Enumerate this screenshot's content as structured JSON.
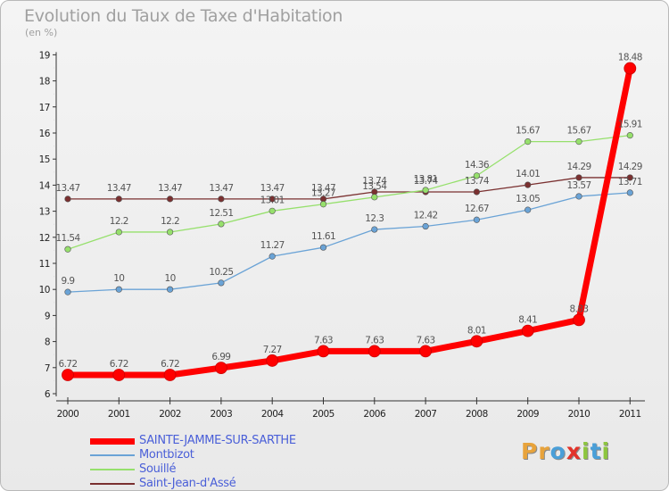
{
  "title": "Evolution du Taux de Taxe d'Habitation",
  "subtitle": "(en %)",
  "logo": {
    "letters": [
      "P",
      "r",
      "o",
      "x",
      "i",
      "t",
      "i"
    ],
    "colors": [
      "#e8a33b",
      "#e8a33b",
      "#4a9fd8",
      "#e2332a",
      "#8dc63f",
      "#4a9fd8",
      "#8dc63f"
    ]
  },
  "chart_data": {
    "type": "line",
    "x": [
      "2000",
      "2001",
      "2002",
      "2003",
      "2004",
      "2005",
      "2006",
      "2007",
      "2008",
      "2009",
      "2010",
      "2011"
    ],
    "ylim": [
      6,
      19
    ],
    "yticks": [
      "6",
      "7",
      "8",
      "9",
      "10",
      "11",
      "12",
      "13",
      "14",
      "15",
      "16",
      "17",
      "18",
      "19"
    ],
    "grid": false,
    "legend_position": "bottom-left",
    "series": [
      {
        "name": "SAINTE-JAMME-SUR-SARTHE",
        "color": "#ff0000",
        "values": [
          6.72,
          6.72,
          6.72,
          6.99,
          7.27,
          7.63,
          7.63,
          7.63,
          8.01,
          8.41,
          8.83,
          18.48
        ],
        "labels": [
          "6.72",
          "6.72",
          "6.72",
          "6.99",
          "7.27",
          "7.63",
          "7.63",
          "7.63",
          "8.01",
          "8.41",
          "8.83",
          "18.48"
        ]
      },
      {
        "name": "Montbizot",
        "color": "#6aa3d6",
        "values": [
          9.9,
          10,
          10,
          10.25,
          11.27,
          11.61,
          12.3,
          12.42,
          12.67,
          13.05,
          13.57,
          13.71
        ],
        "labels": [
          "9.9",
          "10",
          "10",
          "10.25",
          "11.27",
          "11.61",
          "12.3",
          "12.42",
          "12.67",
          "13.05",
          "13.57",
          "13.71"
        ]
      },
      {
        "name": "Souillé",
        "color": "#96e06c",
        "values": [
          11.54,
          12.2,
          12.2,
          12.51,
          13.01,
          13.27,
          13.54,
          13.81,
          14.36,
          15.67,
          15.67,
          15.91
        ],
        "labels": [
          "11.54",
          "12.2",
          "12.2",
          "12.51",
          "13.01",
          "13.27",
          "13.54",
          "13.81",
          "14.36",
          "15.67",
          "15.67",
          "15.91"
        ]
      },
      {
        "name": "Saint-Jean-d'Assé",
        "color": "#7a3030",
        "values": [
          13.47,
          13.47,
          13.47,
          13.47,
          13.47,
          13.47,
          13.74,
          13.74,
          13.74,
          14.01,
          14.29,
          14.29
        ],
        "labels": [
          "13.47",
          "13.47",
          "13.47",
          "13.47",
          "13.47",
          "13.47",
          "13.74",
          "13.74",
          "13.74",
          "14.01",
          "14.29",
          "14.29"
        ]
      }
    ]
  }
}
